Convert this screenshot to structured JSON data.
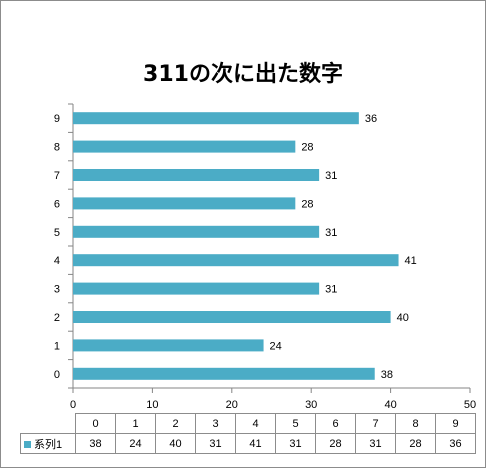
{
  "chart_data": {
    "type": "bar",
    "orientation": "horizontal",
    "title": "311の次に出た数字",
    "categories": [
      "0",
      "1",
      "2",
      "3",
      "4",
      "5",
      "6",
      "7",
      "8",
      "9"
    ],
    "series": [
      {
        "name": "系列1",
        "values": [
          38,
          24,
          40,
          31,
          41,
          31,
          28,
          31,
          28,
          36
        ],
        "color": "#4bacc6"
      }
    ],
    "xlim": [
      0,
      50
    ],
    "xticks": [
      "0",
      "10",
      "20",
      "30",
      "40",
      "50"
    ],
    "grid": false,
    "data_labels": true,
    "legend": "data-table"
  }
}
